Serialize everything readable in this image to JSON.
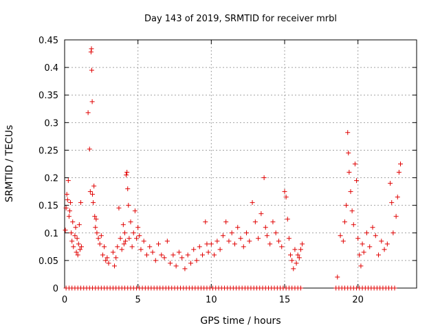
{
  "chart_data": {
    "type": "scatter",
    "title": "Day 143 of 2019, SRMTID for receiver mrbl",
    "xlabel": "GPS time / hours",
    "ylabel": "SRMTID / TECUs",
    "xlim": [
      0,
      24
    ],
    "ylim": [
      0,
      0.45
    ],
    "xticks": [
      0,
      5,
      10,
      15,
      20
    ],
    "xtick_labels": [
      "0",
      "5",
      "10",
      "15",
      "20"
    ],
    "yticks": [
      0,
      0.05,
      0.1,
      0.15,
      0.2,
      0.25,
      0.3,
      0.35,
      0.4,
      0.45
    ],
    "ytick_labels": [
      "0",
      "0.05",
      "0.1",
      "0.15",
      "0.2",
      "0.25",
      "0.3",
      "0.35",
      "0.4",
      "0.45"
    ],
    "grid": true,
    "marker": "+",
    "marker_color": "#e00000",
    "series": [
      {
        "name": "SRMTID",
        "points": [
          [
            0.05,
            0.105
          ],
          [
            0.1,
            0.145
          ],
          [
            0.15,
            0.17
          ],
          [
            0.2,
            0.16
          ],
          [
            0.25,
            0.195
          ],
          [
            0.3,
            0.13
          ],
          [
            0.35,
            0.14
          ],
          [
            0.4,
            0.155
          ],
          [
            0.45,
            0.1
          ],
          [
            0.5,
            0.085
          ],
          [
            0.55,
            0.12
          ],
          [
            0.6,
            0.075
          ],
          [
            0.7,
            0.095
          ],
          [
            0.75,
            0.11
          ],
          [
            0.8,
            0.065
          ],
          [
            0.85,
            0.09
          ],
          [
            0.9,
            0.06
          ],
          [
            0.95,
            0.08
          ],
          [
            1.0,
            0.115
          ],
          [
            1.05,
            0.07
          ],
          [
            1.1,
            0.155
          ],
          [
            1.15,
            0.075
          ],
          [
            1.6,
            0.318
          ],
          [
            1.7,
            0.252
          ],
          [
            1.75,
            0.175
          ],
          [
            1.8,
            0.428
          ],
          [
            1.83,
            0.434
          ],
          [
            1.85,
            0.395
          ],
          [
            1.88,
            0.338
          ],
          [
            1.9,
            0.17
          ],
          [
            1.95,
            0.155
          ],
          [
            2.0,
            0.185
          ],
          [
            2.05,
            0.13
          ],
          [
            2.1,
            0.11
          ],
          [
            2.15,
            0.125
          ],
          [
            2.2,
            0.1
          ],
          [
            2.3,
            0.09
          ],
          [
            2.4,
            0.08
          ],
          [
            2.5,
            0.095
          ],
          [
            2.6,
            0.06
          ],
          [
            2.7,
            0.075
          ],
          [
            2.8,
            0.05
          ],
          [
            2.9,
            0.055
          ],
          [
            3.0,
            0.045
          ],
          [
            3.3,
            0.065
          ],
          [
            3.4,
            0.04
          ],
          [
            3.5,
            0.055
          ],
          [
            3.6,
            0.075
          ],
          [
            3.7,
            0.145
          ],
          [
            3.8,
            0.09
          ],
          [
            3.9,
            0.07
          ],
          [
            4.0,
            0.115
          ],
          [
            4.05,
            0.08
          ],
          [
            4.1,
            0.1
          ],
          [
            4.15,
            0.085
          ],
          [
            4.2,
            0.205
          ],
          [
            4.25,
            0.21
          ],
          [
            4.3,
            0.18
          ],
          [
            4.35,
            0.15
          ],
          [
            4.4,
            0.09
          ],
          [
            4.5,
            0.12
          ],
          [
            4.6,
            0.075
          ],
          [
            4.7,
            0.1
          ],
          [
            4.8,
            0.14
          ],
          [
            4.9,
            0.09
          ],
          [
            5.0,
            0.11
          ],
          [
            5.1,
            0.095
          ],
          [
            5.2,
            0.07
          ],
          [
            5.4,
            0.085
          ],
          [
            5.6,
            0.06
          ],
          [
            5.8,
            0.075
          ],
          [
            6.0,
            0.065
          ],
          [
            6.2,
            0.05
          ],
          [
            6.4,
            0.08
          ],
          [
            6.6,
            0.06
          ],
          [
            6.8,
            0.055
          ],
          [
            7.0,
            0.085
          ],
          [
            7.2,
            0.045
          ],
          [
            7.4,
            0.06
          ],
          [
            7.6,
            0.04
          ],
          [
            7.8,
            0.065
          ],
          [
            8.0,
            0.055
          ],
          [
            8.2,
            0.035
          ],
          [
            8.4,
            0.06
          ],
          [
            8.6,
            0.045
          ],
          [
            8.8,
            0.07
          ],
          [
            9.0,
            0.05
          ],
          [
            9.2,
            0.075
          ],
          [
            9.4,
            0.06
          ],
          [
            9.6,
            0.12
          ],
          [
            9.7,
            0.08
          ],
          [
            9.8,
            0.065
          ],
          [
            10.0,
            0.08
          ],
          [
            10.2,
            0.06
          ],
          [
            10.4,
            0.085
          ],
          [
            10.6,
            0.07
          ],
          [
            10.8,
            0.095
          ],
          [
            11.0,
            0.12
          ],
          [
            11.2,
            0.085
          ],
          [
            11.4,
            0.1
          ],
          [
            11.6,
            0.08
          ],
          [
            11.8,
            0.11
          ],
          [
            12.0,
            0.09
          ],
          [
            12.2,
            0.075
          ],
          [
            12.4,
            0.1
          ],
          [
            12.6,
            0.085
          ],
          [
            12.8,
            0.155
          ],
          [
            13.0,
            0.12
          ],
          [
            13.2,
            0.09
          ],
          [
            13.4,
            0.135
          ],
          [
            13.6,
            0.2
          ],
          [
            13.7,
            0.11
          ],
          [
            13.8,
            0.095
          ],
          [
            14.0,
            0.08
          ],
          [
            14.2,
            0.12
          ],
          [
            14.4,
            0.1
          ],
          [
            14.6,
            0.085
          ],
          [
            14.8,
            0.075
          ],
          [
            15.0,
            0.175
          ],
          [
            15.1,
            0.165
          ],
          [
            15.2,
            0.125
          ],
          [
            15.3,
            0.09
          ],
          [
            15.4,
            0.06
          ],
          [
            15.5,
            0.05
          ],
          [
            15.6,
            0.035
          ],
          [
            15.7,
            0.07
          ],
          [
            15.8,
            0.045
          ],
          [
            15.9,
            0.06
          ],
          [
            16.0,
            0.055
          ],
          [
            16.1,
            0.07
          ],
          [
            16.2,
            0.08
          ],
          [
            18.6,
            0.02
          ],
          [
            18.8,
            0.095
          ],
          [
            19.0,
            0.085
          ],
          [
            19.1,
            0.12
          ],
          [
            19.2,
            0.15
          ],
          [
            19.3,
            0.282
          ],
          [
            19.35,
            0.245
          ],
          [
            19.4,
            0.21
          ],
          [
            19.5,
            0.175
          ],
          [
            19.6,
            0.14
          ],
          [
            19.7,
            0.115
          ],
          [
            19.8,
            0.225
          ],
          [
            19.9,
            0.195
          ],
          [
            20.0,
            0.09
          ],
          [
            20.1,
            0.06
          ],
          [
            20.2,
            0.04
          ],
          [
            20.3,
            0.08
          ],
          [
            20.4,
            0.065
          ],
          [
            20.6,
            0.1
          ],
          [
            20.8,
            0.075
          ],
          [
            21.0,
            0.11
          ],
          [
            21.2,
            0.095
          ],
          [
            21.4,
            0.06
          ],
          [
            21.6,
            0.085
          ],
          [
            21.8,
            0.07
          ],
          [
            22.0,
            0.08
          ],
          [
            22.2,
            0.19
          ],
          [
            22.3,
            0.155
          ],
          [
            22.4,
            0.1
          ],
          [
            22.6,
            0.13
          ],
          [
            22.7,
            0.165
          ],
          [
            22.8,
            0.21
          ],
          [
            22.9,
            0.225
          ]
        ],
        "zero_points": [
          0.1,
          0.3,
          0.5,
          0.7,
          0.9,
          1.1,
          1.3,
          1.5,
          1.7,
          1.9,
          2.1,
          2.3,
          2.5,
          2.7,
          2.9,
          3.1,
          3.3,
          3.5,
          3.7,
          3.9,
          4.1,
          4.3,
          4.5,
          4.7,
          4.9,
          5.1,
          5.3,
          5.5,
          5.7,
          5.9,
          6.1,
          6.3,
          6.5,
          6.7,
          6.9,
          7.1,
          7.3,
          7.5,
          7.7,
          7.9,
          8.1,
          8.3,
          8.5,
          8.7,
          8.9,
          9.1,
          9.3,
          9.5,
          9.7,
          9.9,
          10.1,
          10.3,
          10.5,
          10.7,
          10.9,
          11.1,
          11.3,
          11.5,
          11.7,
          11.9,
          12.1,
          12.3,
          12.5,
          12.7,
          12.9,
          13.1,
          13.3,
          13.5,
          13.7,
          13.9,
          14.1,
          14.3,
          14.5,
          14.7,
          14.9,
          15.1,
          15.3,
          15.5,
          15.7,
          15.9,
          16.1,
          18.5,
          18.7,
          18.9,
          19.1,
          19.3,
          19.5,
          19.7,
          19.9,
          20.1,
          20.3,
          20.5,
          20.7,
          20.9,
          21.1,
          21.3,
          21.5,
          21.7,
          21.9,
          22.1,
          22.3,
          22.5
        ]
      }
    ]
  }
}
